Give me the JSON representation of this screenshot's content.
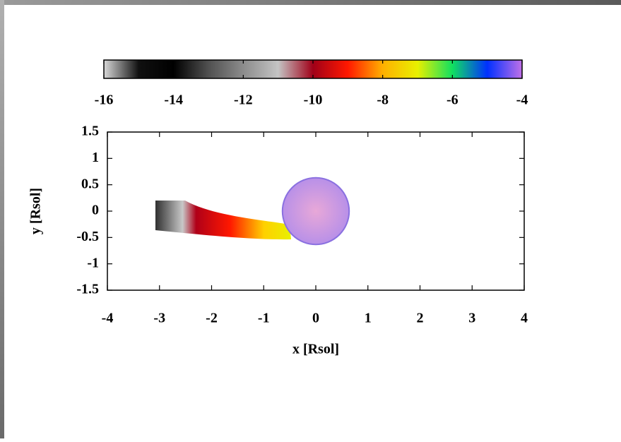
{
  "chart_data": {
    "type": "image",
    "xlabel": "x [Rsol]",
    "ylabel": "y [Rsol]",
    "xlim": [
      -4,
      4
    ],
    "xticks": [
      -4,
      -3,
      -2,
      -1,
      0,
      1,
      2,
      3,
      4
    ],
    "ylim": [
      -1.5,
      1.5
    ],
    "yticks": [
      -1.5,
      -1,
      -0.5,
      0,
      0.5,
      1,
      1.5
    ],
    "colorbar": {
      "lim": [
        -16,
        -4
      ],
      "ticks": [
        -16,
        -14,
        -12,
        -10,
        -8,
        -6,
        -4
      ],
      "colors": [
        "#d8d8d8",
        "#101010",
        "#000000",
        "#505050",
        "#8c8c8c",
        "#c4c4c4",
        "#a00018",
        "#ff1800",
        "#ffb000",
        "#e8f000",
        "#10e060",
        "#0030ff",
        "#c070e8"
      ]
    },
    "star": {
      "x": 0,
      "y": 0,
      "r": 0.64,
      "color": "#d6a0e0",
      "edge": "#8a70e0"
    }
  }
}
